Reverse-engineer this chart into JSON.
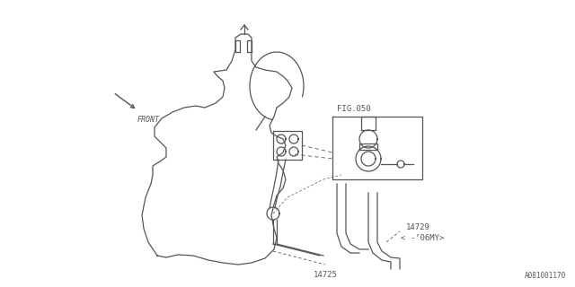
{
  "bg_color": "#ffffff",
  "line_color": "#555555",
  "fig_width": 6.4,
  "fig_height": 3.2,
  "dpi": 100,
  "labels": {
    "fig050": "FIG.050",
    "label14725": "14725",
    "label14729": "14729",
    "label14729b": "< -’06MY>",
    "front": "FRONT",
    "part_id": "A081001170"
  }
}
